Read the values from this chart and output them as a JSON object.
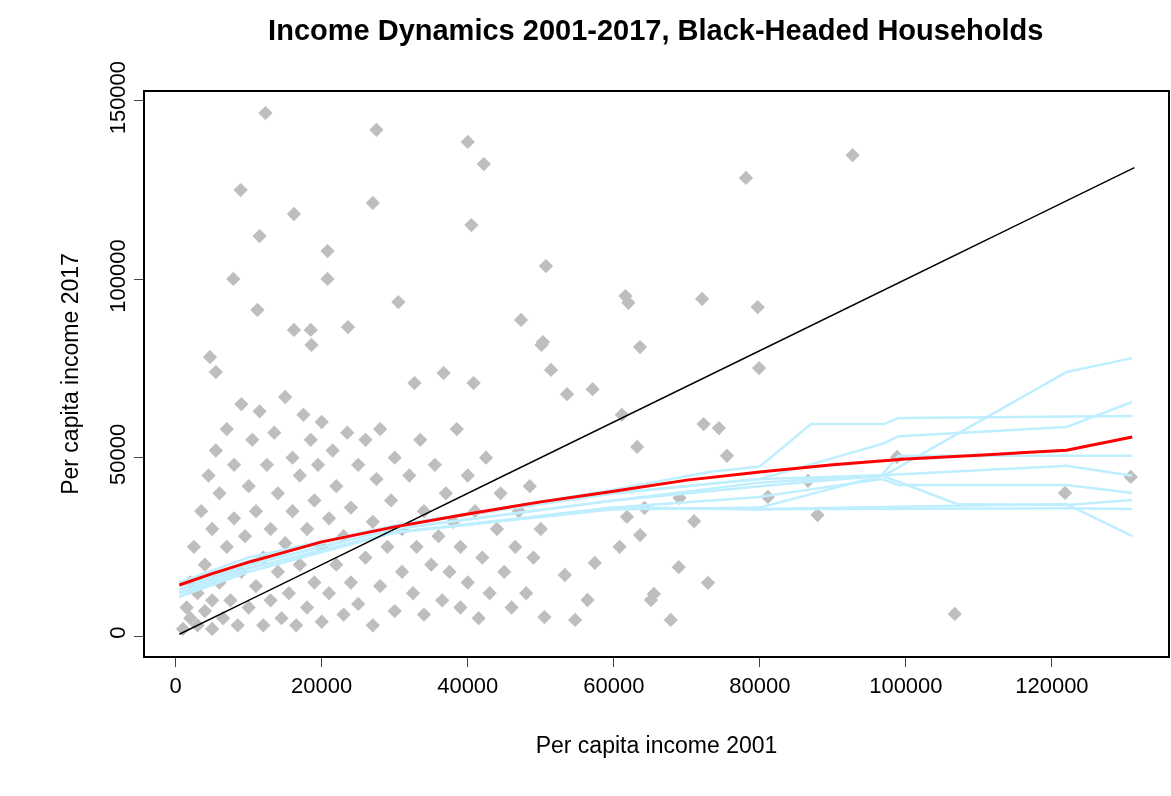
{
  "chart_data": {
    "type": "scatter",
    "title": "Income Dynamics 2001-2017, Black-Headed Households",
    "xlabel": "Per capita income 2001",
    "ylabel": "Per capita income 2017",
    "xlim": [
      -4200,
      135900
    ],
    "ylim": [
      -5600,
      152500
    ],
    "xticks": [
      0,
      20000,
      40000,
      60000,
      80000,
      100000,
      120000
    ],
    "yticks": [
      0,
      50000,
      100000,
      150000
    ],
    "series": [
      {
        "marker": "diamond",
        "color": "#bebebe",
        "x": [
          12300,
          27500,
          40000,
          42200,
          8900,
          27000,
          16200,
          40500,
          11500,
          20800,
          50700,
          7900,
          20800,
          30500,
          11200,
          92700,
          78100,
          61600,
          62000,
          72100,
          79700,
          63600,
          47300,
          50300,
          50100,
          23600,
          16200,
          18500,
          18600,
          4700,
          5500,
          51400,
          79900,
          36700,
          40800,
          32700,
          53600,
          57100,
          61100,
          72300,
          74400,
          63200,
          75500,
          98800,
          130800,
          121800,
          86600,
          81100,
          71000,
          87900,
          69000,
          64200,
          61800,
          63600,
          60800,
          106700,
          72900,
          68900,
          65500,
          65100,
          67800,
          53300,
          56400,
          54700,
          50500,
          57400,
          1000,
          1500,
          2000,
          2000,
          2500,
          3000,
          3000,
          3500,
          4000,
          4000,
          4500,
          5000,
          5000,
          5000,
          5500,
          6000,
          6000,
          6500,
          7000,
          7000,
          7500,
          8000,
          8000,
          8500,
          9000,
          9000,
          9500,
          10000,
          10000,
          10500,
          11000,
          11000,
          11500,
          12000,
          12000,
          12500,
          13000,
          13000,
          13500,
          14000,
          14000,
          14500,
          15000,
          15000,
          15500,
          16000,
          16000,
          16500,
          17000,
          17000,
          17500,
          18000,
          18000,
          18500,
          19000,
          19000,
          19500,
          20000,
          20000,
          20000,
          21000,
          21000,
          21500,
          22000,
          22000,
          23000,
          23000,
          23500,
          24000,
          24000,
          25000,
          25000,
          26000,
          26000,
          27000,
          27000,
          27500,
          28000,
          28000,
          29000,
          29500,
          30000,
          30000,
          31000,
          31000,
          32000,
          32500,
          33000,
          33500,
          34000,
          34000,
          35000,
          35500,
          36000,
          36500,
          37000,
          37500,
          38000,
          38500,
          39000,
          39000,
          40000,
          40000,
          41000,
          41500,
          42000,
          42500,
          43000,
          44000,
          44500,
          45000,
          46000,
          46500,
          47000,
          48000,
          48500,
          49000,
          50000
        ],
        "values": [
          146600,
          141900,
          138500,
          132300,
          125000,
          121400,
          118300,
          115200,
          112100,
          107900,
          103700,
          100100,
          100100,
          93600,
          91400,
          134800,
          128400,
          95300,
          93400,
          94500,
          92200,
          81000,
          88600,
          82400,
          81600,
          86600,
          85800,
          85800,
          81600,
          78200,
          74000,
          74600,
          75100,
          73700,
          70900,
          70900,
          67800,
          69200,
          62000,
          59400,
          58300,
          53000,
          50500,
          50200,
          44600,
          40100,
          43500,
          39000,
          32200,
          33900,
          38700,
          35900,
          33400,
          28300,
          25000,
          6200,
          14900,
          19300,
          11800,
          10100,
          4500,
          17100,
          10100,
          4500,
          5300,
          20500,
          2000,
          8000,
          5000,
          15000,
          25000,
          3000,
          12000,
          35000,
          7000,
          20000,
          45000,
          2000,
          10000,
          30000,
          52000,
          15000,
          40000,
          5000,
          25000,
          58000,
          10000,
          33000,
          48000,
          3000,
          18000,
          65000,
          28000,
          8000,
          42000,
          55000,
          14000,
          35000,
          63000,
          3000,
          22000,
          48000,
          10000,
          30000,
          57000,
          18000,
          40000,
          5000,
          26000,
          67000,
          12000,
          35000,
          50000,
          3000,
          20000,
          45000,
          62000,
          8000,
          30000,
          55000,
          15000,
          38000,
          48000,
          4000,
          25000,
          60000,
          12000,
          33000,
          52000,
          20000,
          42000,
          6000,
          28000,
          57000,
          15000,
          36000,
          48000,
          9000,
          22000,
          55000,
          3000,
          32000,
          44000,
          14000,
          58000,
          25000,
          38000,
          7000,
          50000,
          18000,
          30000,
          45000,
          12000,
          25000,
          55000,
          6000,
          35000,
          20000,
          48000,
          28000,
          10000,
          40000,
          18000,
          32000,
          58000,
          8000,
          25000,
          45000,
          15000,
          35000,
          5000,
          22000,
          50000,
          12000,
          30000,
          40000,
          18000,
          8000,
          25000,
          35000,
          12000,
          42000,
          22000,
          30000
        ]
      },
      {
        "type": "line",
        "color": "#bfefff",
        "x": [
          500,
          10000,
          30000,
          60000,
          80000,
          97000,
          122000,
          131000
        ],
        "values": [
          12000,
          20000,
          30000,
          38000,
          42000,
          45000,
          74000,
          77900
        ]
      },
      {
        "type": "line",
        "color": "#bfefff",
        "x": [
          500,
          10000,
          30000,
          60000,
          80000,
          97000,
          99000,
          122000,
          131000
        ],
        "values": [
          13000,
          21000,
          31000,
          40000,
          44000,
          54000,
          56000,
          58600,
          65600
        ]
      },
      {
        "type": "line",
        "color": "#bfefff",
        "x": [
          500,
          10000,
          30000,
          60000,
          73000,
          80000,
          87000,
          97000,
          99000,
          131000
        ],
        "values": [
          14000,
          21000,
          31000,
          41000,
          46000,
          47500,
          59400,
          59400,
          61100,
          61700
        ]
      },
      {
        "type": "line",
        "color": "#bfefff",
        "x": [
          500,
          10000,
          30000,
          60000,
          80000,
          96700,
          99000,
          131000
        ],
        "values": [
          15000,
          22000,
          31000,
          40000,
          44000,
          45100,
          50500,
          50500
        ]
      },
      {
        "type": "line",
        "color": "#bfefff",
        "x": [
          500,
          10000,
          30000,
          60000,
          80000,
          96700,
          122000,
          131000
        ],
        "values": [
          13000,
          20000,
          30000,
          38000,
          43000,
          45100,
          47700,
          44900
        ]
      },
      {
        "type": "line",
        "color": "#bfefff",
        "x": [
          500,
          10000,
          30000,
          60000,
          80000,
          96700,
          99000,
          122000,
          131000
        ],
        "values": [
          12000,
          19000,
          29000,
          36000,
          39000,
          44000,
          42300,
          42300,
          40100
        ]
      },
      {
        "type": "line",
        "color": "#bfefff",
        "x": [
          500,
          10000,
          30000,
          60000,
          80000,
          96700,
          107000,
          122000,
          131000
        ],
        "values": [
          11000,
          19000,
          29000,
          35500,
          36000,
          45000,
          37000,
          36700,
          38100
        ]
      },
      {
        "type": "line",
        "color": "#bfefff",
        "x": [
          500,
          10000,
          30000,
          60000,
          80000,
          122000,
          131000
        ],
        "values": [
          11000,
          18000,
          29000,
          36000,
          35500,
          35800,
          35600
        ]
      },
      {
        "type": "line",
        "color": "#bfefff",
        "x": [
          500,
          10000,
          30000,
          60000,
          80000,
          122000,
          131000
        ],
        "values": [
          12000,
          19000,
          29000,
          36000,
          35600,
          37000,
          28000
        ]
      },
      {
        "type": "line",
        "color": "#000000",
        "x": [
          500,
          131300
        ],
        "values": [
          500,
          131300
        ]
      },
      {
        "type": "line",
        "color": "#ff0000",
        "x": [
          500,
          5000,
          10000,
          20000,
          30000,
          40000,
          50000,
          60000,
          70000,
          80000,
          90000,
          100000,
          110000,
          122000,
          131000
        ],
        "values": [
          14300,
          17500,
          20700,
          26400,
          30600,
          34200,
          37600,
          40600,
          43700,
          46000,
          48000,
          49600,
          50700,
          52100,
          55800
        ]
      }
    ]
  }
}
